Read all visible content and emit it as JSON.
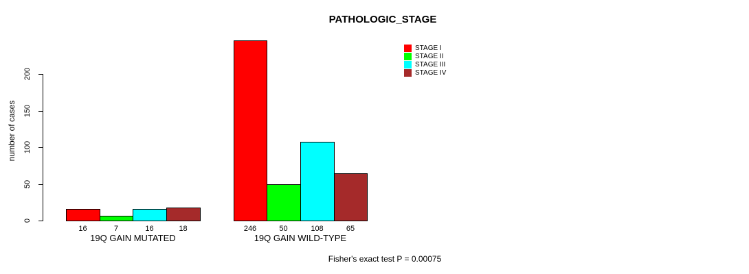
{
  "title": "PATHOLOGIC_STAGE",
  "footer": "Fisher's exact test P = 0.00075",
  "chart_data": {
    "type": "bar",
    "title": "PATHOLOGIC_STAGE",
    "xlabel": "",
    "ylabel": "number of cases",
    "categories": [
      "19Q GAIN MUTATED",
      "19Q GAIN WILD-TYPE"
    ],
    "series": [
      {
        "name": "STAGE I",
        "color": "#FF0000",
        "values": [
          16,
          246
        ]
      },
      {
        "name": "STAGE II",
        "color": "#00FF00",
        "values": [
          7,
          50
        ]
      },
      {
        "name": "STAGE III",
        "color": "#00FFFF",
        "values": [
          16,
          108
        ]
      },
      {
        "name": "STAGE IV",
        "color": "#A52A2A",
        "values": [
          18,
          65
        ]
      }
    ],
    "yticks": [
      0,
      50,
      100,
      150,
      200
    ],
    "ylim": [
      0,
      246
    ],
    "grid": false,
    "bar_borders": "#000000",
    "bar_value_labels": true,
    "legend_position": "top-right",
    "legend_entries": [
      "STAGE I",
      "STAGE II",
      "STAGE III",
      "STAGE IV"
    ],
    "annotation": "Fisher's exact test P = 0.00075"
  }
}
